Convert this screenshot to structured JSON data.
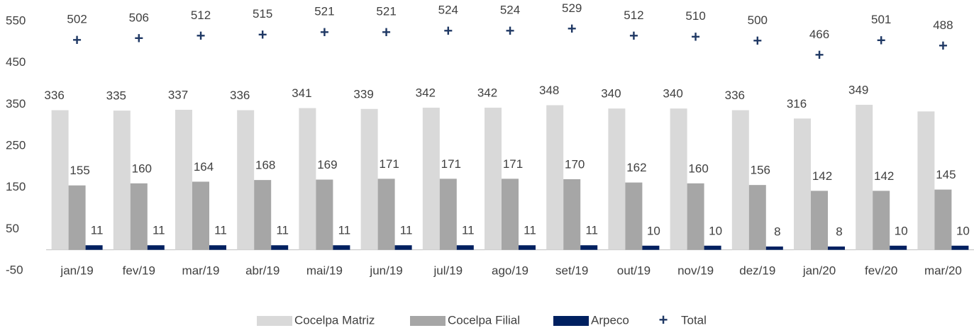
{
  "chart_data": {
    "type": "bar",
    "categories": [
      "jan/19",
      "fev/19",
      "mar/19",
      "abr/19",
      "mai/19",
      "jun/19",
      "jul/19",
      "ago/19",
      "set/19",
      "out/19",
      "nov/19",
      "dez/19",
      "jan/20",
      "fev/20",
      "mar/20"
    ],
    "series": [
      {
        "name": "Cocelpa Matriz",
        "color": "#d9d9d9",
        "type": "bar",
        "values": [
          336,
          335,
          337,
          336,
          341,
          339,
          342,
          342,
          348,
          340,
          340,
          336,
          316,
          349,
          333
        ],
        "value_labels": [
          "336",
          "335",
          "337",
          "336",
          "341",
          "339",
          "342",
          "342",
          "348",
          "340",
          "340",
          "336",
          "316",
          "349",
          null
        ]
      },
      {
        "name": "Cocelpa Filial",
        "color": "#a6a6a6",
        "type": "bar",
        "values": [
          155,
          160,
          164,
          168,
          169,
          171,
          171,
          171,
          170,
          162,
          160,
          156,
          142,
          142,
          145
        ]
      },
      {
        "name": "Arpeco",
        "color": "#002060",
        "type": "bar",
        "values": [
          11,
          11,
          11,
          11,
          11,
          11,
          11,
          11,
          11,
          10,
          10,
          8,
          8,
          10,
          10
        ]
      },
      {
        "name": "Total",
        "color": "#1f3864",
        "type": "scatter",
        "values": [
          502,
          506,
          512,
          515,
          521,
          521,
          524,
          524,
          529,
          512,
          510,
          500,
          466,
          501,
          488
        ]
      }
    ],
    "ylim": [
      -50,
      550
    ],
    "yticks": [
      -50,
      50,
      150,
      250,
      350,
      450,
      550
    ],
    "grid": false,
    "legend": "bottom"
  }
}
